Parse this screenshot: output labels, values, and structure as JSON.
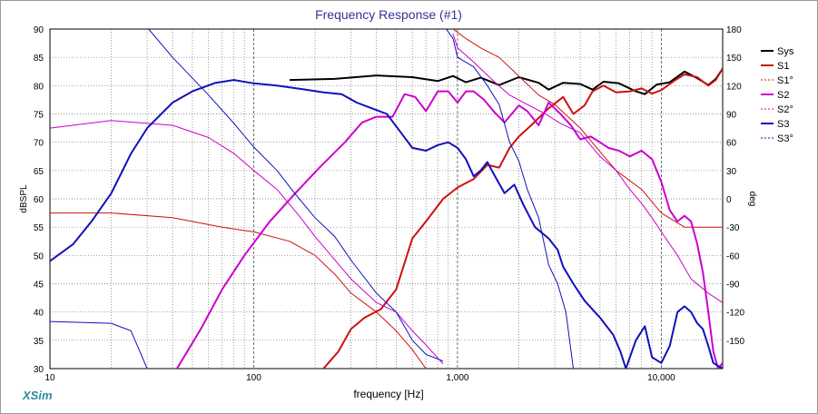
{
  "app": {
    "brand": "XSim"
  },
  "chart_data": {
    "type": "line",
    "title": "Frequency Response (#1)",
    "xlabel": "frequency [Hz]",
    "ylabel": "dBSPL",
    "y2label": "deg",
    "xscale": "log",
    "xlim": [
      10,
      20000
    ],
    "ylim": [
      30,
      90
    ],
    "y2lim": [
      -180,
      180
    ],
    "x_ticks": [
      {
        "value": 10,
        "label": "10"
      },
      {
        "value": 100,
        "label": "100"
      },
      {
        "value": 1000,
        "label": "1,000"
      },
      {
        "value": 10000,
        "label": "10,000"
      }
    ],
    "y_ticks": [
      30,
      35,
      40,
      45,
      50,
      55,
      60,
      65,
      70,
      75,
      80,
      85,
      90
    ],
    "y2_ticks": [
      -150,
      -120,
      -90,
      -60,
      -30,
      0,
      30,
      60,
      90,
      120,
      150,
      180
    ],
    "grid": true,
    "legend_position": "right",
    "series": [
      {
        "name": "Sys",
        "axis": "left",
        "color": "#000000",
        "style": "solid",
        "width": 2,
        "points": [
          [
            150,
            81
          ],
          [
            250,
            81.2
          ],
          [
            400,
            81.8
          ],
          [
            600,
            81.5
          ],
          [
            800,
            80.8
          ],
          [
            950,
            81.7
          ],
          [
            1100,
            80.6
          ],
          [
            1300,
            81.4
          ],
          [
            1600,
            80.1
          ],
          [
            2000,
            81.5
          ],
          [
            2500,
            80.5
          ],
          [
            2800,
            79.3
          ],
          [
            3300,
            80.5
          ],
          [
            4000,
            80.3
          ],
          [
            4600,
            79.3
          ],
          [
            5200,
            80.7
          ],
          [
            6200,
            80.4
          ],
          [
            7500,
            79
          ],
          [
            8300,
            78.5
          ],
          [
            9500,
            80.2
          ],
          [
            11000,
            80.6
          ],
          [
            13000,
            82.5
          ],
          [
            15000,
            81.3
          ],
          [
            17000,
            80.1
          ],
          [
            18500,
            81.2
          ],
          [
            20000,
            83
          ]
        ]
      },
      {
        "name": "S1",
        "axis": "left",
        "color": "#cc1111",
        "style": "solid",
        "width": 2,
        "points": [
          [
            220,
            30
          ],
          [
            260,
            33
          ],
          [
            300,
            37
          ],
          [
            350,
            39
          ],
          [
            420,
            40.5
          ],
          [
            500,
            44
          ],
          [
            600,
            53
          ],
          [
            700,
            56
          ],
          [
            850,
            60
          ],
          [
            1000,
            62
          ],
          [
            1200,
            63.5
          ],
          [
            1400,
            66
          ],
          [
            1600,
            65.5
          ],
          [
            1800,
            69
          ],
          [
            2000,
            71
          ],
          [
            2300,
            73
          ],
          [
            2800,
            76
          ],
          [
            3300,
            78
          ],
          [
            3700,
            75
          ],
          [
            4200,
            76.5
          ],
          [
            4600,
            79
          ],
          [
            5200,
            80
          ],
          [
            6000,
            78.8
          ],
          [
            7000,
            79
          ],
          [
            8000,
            79.5
          ],
          [
            9000,
            78.6
          ],
          [
            10000,
            79.2
          ],
          [
            11500,
            80.8
          ],
          [
            13000,
            82
          ],
          [
            15000,
            81.5
          ],
          [
            17000,
            80
          ],
          [
            18500,
            81
          ],
          [
            20000,
            83
          ]
        ]
      },
      {
        "name": "S1°",
        "axis": "right",
        "color": "#cc1111",
        "style": "solid",
        "width": 1,
        "points": [
          [
            10,
            -15
          ],
          [
            20,
            -15
          ],
          [
            40,
            -20
          ],
          [
            70,
            -30
          ],
          [
            100,
            -35
          ],
          [
            150,
            -45
          ],
          [
            200,
            -60
          ],
          [
            250,
            -80
          ],
          [
            300,
            -100
          ],
          [
            400,
            -120
          ],
          [
            500,
            -140
          ],
          [
            600,
            -160
          ],
          [
            700,
            -180
          ],
          [
            950,
            180
          ],
          [
            1100,
            170
          ],
          [
            1300,
            160
          ],
          [
            1600,
            150
          ],
          [
            2000,
            130
          ],
          [
            2500,
            110
          ],
          [
            3000,
            100
          ],
          [
            4000,
            75
          ],
          [
            5000,
            50
          ],
          [
            6000,
            30
          ],
          [
            8000,
            10
          ],
          [
            10000,
            -15
          ],
          [
            13000,
            -30
          ],
          [
            16000,
            -30
          ],
          [
            20000,
            -30
          ]
        ]
      },
      {
        "name": "S2",
        "axis": "left",
        "color": "#cc00cc",
        "style": "solid",
        "width": 2,
        "points": [
          [
            42,
            30
          ],
          [
            55,
            37
          ],
          [
            70,
            44
          ],
          [
            90,
            50
          ],
          [
            120,
            56
          ],
          [
            160,
            61
          ],
          [
            210,
            65.5
          ],
          [
            280,
            70
          ],
          [
            340,
            73.5
          ],
          [
            400,
            74.5
          ],
          [
            480,
            74.5
          ],
          [
            550,
            78.5
          ],
          [
            620,
            78
          ],
          [
            700,
            75.5
          ],
          [
            800,
            79
          ],
          [
            900,
            79
          ],
          [
            1000,
            77
          ],
          [
            1100,
            79
          ],
          [
            1200,
            79
          ],
          [
            1350,
            77.5
          ],
          [
            1500,
            75.5
          ],
          [
            1700,
            73.5
          ],
          [
            2000,
            76.5
          ],
          [
            2200,
            75.5
          ],
          [
            2500,
            73
          ],
          [
            2800,
            77
          ],
          [
            3200,
            75
          ],
          [
            3600,
            73
          ],
          [
            4000,
            70.5
          ],
          [
            4500,
            71
          ],
          [
            5000,
            70
          ],
          [
            5500,
            69
          ],
          [
            6200,
            68.5
          ],
          [
            7000,
            67.5
          ],
          [
            8000,
            68.5
          ],
          [
            9000,
            67
          ],
          [
            10000,
            63
          ],
          [
            11000,
            58
          ],
          [
            12000,
            56
          ],
          [
            13000,
            57
          ],
          [
            14000,
            56
          ],
          [
            15000,
            52
          ],
          [
            16000,
            47
          ],
          [
            17000,
            40
          ],
          [
            18000,
            33
          ],
          [
            19000,
            30
          ],
          [
            20000,
            31
          ]
        ]
      },
      {
        "name": "S2°",
        "axis": "right",
        "color": "#cc00cc",
        "style": "solid",
        "width": 1,
        "points": [
          [
            10,
            75
          ],
          [
            20,
            83
          ],
          [
            40,
            78
          ],
          [
            60,
            65
          ],
          [
            80,
            48
          ],
          [
            100,
            30
          ],
          [
            130,
            10
          ],
          [
            170,
            -20
          ],
          [
            200,
            -40
          ],
          [
            300,
            -85
          ],
          [
            400,
            -110
          ],
          [
            500,
            -120
          ],
          [
            600,
            -140
          ],
          [
            700,
            -155
          ],
          [
            850,
            -175
          ],
          [
            950,
            175
          ],
          [
            1000,
            160
          ],
          [
            1200,
            145
          ],
          [
            1500,
            125
          ],
          [
            1800,
            110
          ],
          [
            2200,
            100
          ],
          [
            2700,
            90
          ],
          [
            3200,
            80
          ],
          [
            4000,
            70
          ],
          [
            5000,
            45
          ],
          [
            6000,
            30
          ],
          [
            7000,
            10
          ],
          [
            8000,
            -5
          ],
          [
            9000,
            -20
          ],
          [
            10000,
            -35
          ],
          [
            12000,
            -60
          ],
          [
            14000,
            -85
          ],
          [
            17000,
            -100
          ],
          [
            20000,
            -110
          ]
        ]
      },
      {
        "name": "S3",
        "axis": "left",
        "color": "#1111bb",
        "style": "solid",
        "width": 2,
        "points": [
          [
            10,
            49
          ],
          [
            13,
            52
          ],
          [
            16,
            56
          ],
          [
            20,
            61
          ],
          [
            25,
            68
          ],
          [
            30,
            72.5
          ],
          [
            40,
            77
          ],
          [
            50,
            79
          ],
          [
            65,
            80.5
          ],
          [
            80,
            81
          ],
          [
            100,
            80.4
          ],
          [
            130,
            80
          ],
          [
            180,
            79.3
          ],
          [
            220,
            78.8
          ],
          [
            270,
            78.5
          ],
          [
            320,
            77
          ],
          [
            380,
            76
          ],
          [
            450,
            75
          ],
          [
            520,
            72
          ],
          [
            600,
            69
          ],
          [
            700,
            68.5
          ],
          [
            800,
            69.5
          ],
          [
            900,
            70
          ],
          [
            1000,
            69
          ],
          [
            1100,
            67
          ],
          [
            1200,
            64
          ],
          [
            1300,
            65
          ],
          [
            1400,
            66.5
          ],
          [
            1500,
            64.5
          ],
          [
            1700,
            61
          ],
          [
            1900,
            62.5
          ],
          [
            2100,
            59
          ],
          [
            2400,
            55
          ],
          [
            2800,
            53
          ],
          [
            3100,
            51
          ],
          [
            3300,
            48
          ],
          [
            3700,
            45
          ],
          [
            4200,
            42
          ],
          [
            5000,
            39
          ],
          [
            5800,
            36
          ],
          [
            6300,
            33
          ],
          [
            6700,
            30
          ],
          [
            7500,
            35
          ],
          [
            8300,
            37.5
          ],
          [
            9000,
            32
          ],
          [
            10000,
            31
          ],
          [
            11000,
            34
          ],
          [
            12000,
            40
          ],
          [
            13000,
            41
          ],
          [
            14000,
            40
          ],
          [
            15000,
            38
          ],
          [
            16000,
            37
          ],
          [
            17000,
            34
          ],
          [
            18000,
            31
          ],
          [
            20000,
            30
          ]
        ]
      },
      {
        "name": "S3°",
        "axis": "right",
        "color": "#1111bb",
        "style": "solid",
        "width": 1,
        "points": [
          [
            10,
            -130
          ],
          [
            20,
            -132
          ],
          [
            25,
            -140
          ],
          [
            30,
            -180
          ],
          [
            30.5,
            180
          ],
          [
            40,
            150
          ],
          [
            60,
            110
          ],
          [
            80,
            80
          ],
          [
            100,
            55
          ],
          [
            130,
            30
          ],
          [
            160,
            5
          ],
          [
            200,
            -20
          ],
          [
            250,
            -40
          ],
          [
            300,
            -65
          ],
          [
            400,
            -100
          ],
          [
            500,
            -120
          ],
          [
            600,
            -150
          ],
          [
            700,
            -165
          ],
          [
            850,
            -172
          ],
          [
            880,
            180
          ],
          [
            950,
            170
          ],
          [
            1000,
            150
          ],
          [
            1200,
            140
          ],
          [
            1400,
            120
          ],
          [
            1600,
            100
          ],
          [
            1800,
            60
          ],
          [
            2000,
            40
          ],
          [
            2200,
            10
          ],
          [
            2500,
            -20
          ],
          [
            2800,
            -70
          ],
          [
            3100,
            -90
          ],
          [
            3400,
            -120
          ],
          [
            3700,
            -180
          ]
        ]
      }
    ]
  }
}
